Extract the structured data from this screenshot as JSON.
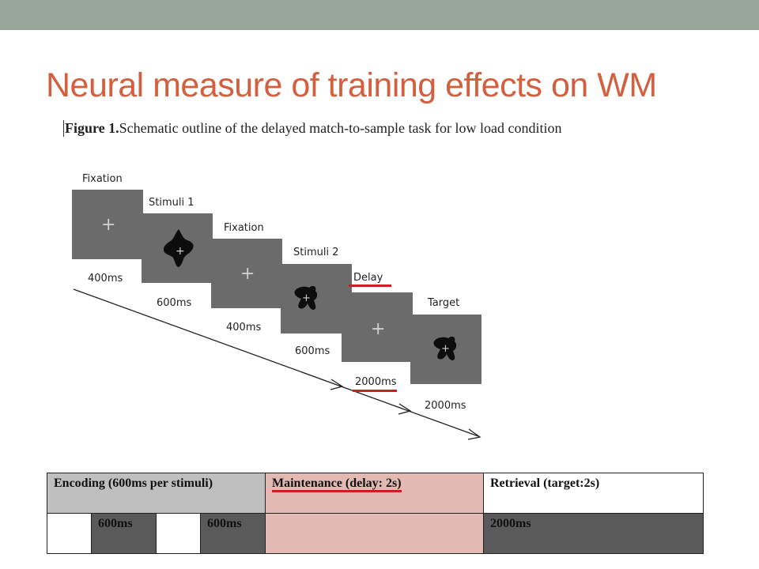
{
  "slide": {
    "title": "Neural measure of training effects on WM",
    "caption_bold": "Figure 1.",
    "caption_text": "Schematic outline of the delayed match-to-sample task for low load condition"
  },
  "diagram": {
    "screens": [
      {
        "label": "Fixation",
        "duration": "400ms",
        "content": "cross"
      },
      {
        "label": "Stimuli 1",
        "duration": "600ms",
        "content": "shape-1"
      },
      {
        "label": "Fixation",
        "duration": "400ms",
        "content": "cross"
      },
      {
        "label": "Stimuli 2",
        "duration": "600ms",
        "content": "shape-2"
      },
      {
        "label": "Delay",
        "duration": "2000ms",
        "content": "cross"
      },
      {
        "label": "Target",
        "duration": "2000ms",
        "content": "shape-2"
      }
    ],
    "highlight_color": "#cc1f1f"
  },
  "phase_table": {
    "header": {
      "encoding": "Encoding (600ms per stimuli)",
      "maintenance": "Maintenance (delay: 2s)",
      "retrieval": "Retrieval (target:2s)"
    },
    "row": {
      "enc1": "600ms",
      "enc2": "600ms",
      "maintenance": "",
      "retrieval": "2000ms"
    }
  },
  "colors": {
    "accent_bar": "#97A69A",
    "title": "#D35F3E",
    "maintenance_fill": "#E3B9B3"
  }
}
